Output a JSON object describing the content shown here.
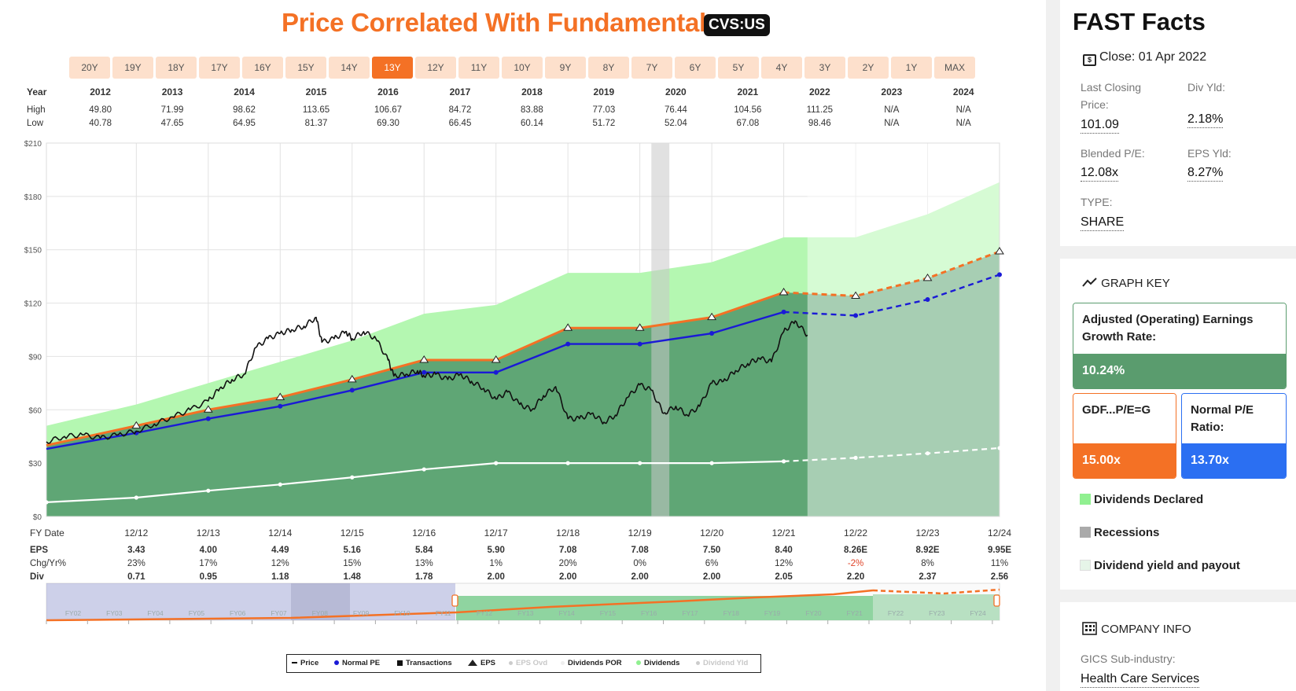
{
  "title": "Price Correlated With Fundamentals",
  "ticker": "CVS:US",
  "tabs": [
    "20Y",
    "19Y",
    "18Y",
    "17Y",
    "16Y",
    "15Y",
    "14Y",
    "13Y",
    "12Y",
    "11Y",
    "10Y",
    "9Y",
    "8Y",
    "7Y",
    "6Y",
    "5Y",
    "4Y",
    "3Y",
    "2Y",
    "1Y",
    "MAX"
  ],
  "active_tab": "13Y",
  "header_table": {
    "year_label": "Year",
    "high_label": "High",
    "low_label": "Low",
    "years": [
      "2012",
      "2013",
      "2014",
      "2015",
      "2016",
      "2017",
      "2018",
      "2019",
      "2020",
      "2021",
      "2022",
      "2023",
      "2024"
    ],
    "high": [
      "49.80",
      "71.99",
      "98.62",
      "113.65",
      "106.67",
      "84.72",
      "83.88",
      "77.03",
      "76.44",
      "104.56",
      "111.25",
      "N/A",
      "N/A"
    ],
    "low": [
      "40.78",
      "47.65",
      "64.95",
      "81.37",
      "69.30",
      "66.45",
      "60.14",
      "51.72",
      "52.04",
      "67.08",
      "98.46",
      "N/A",
      "N/A"
    ]
  },
  "bottom_table": {
    "fy_label": "FY Date",
    "eps_label": "EPS",
    "chg_label": "Chg/Yr%",
    "div_label": "Div",
    "fy_dates": [
      "12/12",
      "12/13",
      "12/14",
      "12/15",
      "12/16",
      "12/17",
      "12/18",
      "12/19",
      "12/20",
      "12/21",
      "12/22",
      "12/23",
      "12/24"
    ],
    "eps": [
      "3.43",
      "4.00",
      "4.49",
      "5.16",
      "5.84",
      "5.90",
      "7.08",
      "7.08",
      "7.50",
      "8.40",
      "8.26E",
      "8.92E",
      "9.95E"
    ],
    "chg": [
      "23%",
      "17%",
      "12%",
      "15%",
      "13%",
      "1%",
      "20%",
      "0%",
      "6%",
      "12%",
      "-2%",
      "8%",
      "11%"
    ],
    "div": [
      "0.71",
      "0.95",
      "1.18",
      "1.48",
      "1.78",
      "2.00",
      "2.00",
      "2.00",
      "2.00",
      "2.05",
      "2.20",
      "2.37",
      "2.56"
    ]
  },
  "chart_data": {
    "type": "area",
    "title": "Price Correlated With Fundamentals",
    "ylim": [
      0,
      210
    ],
    "y_ticks": [
      "$0",
      "$30",
      "$60",
      "$90",
      "$120",
      "$150",
      "$180",
      "$210"
    ],
    "y_tick_values": [
      0,
      30,
      60,
      90,
      120,
      150,
      180,
      210
    ],
    "x_labels": [
      "12/12",
      "12/13",
      "12/14",
      "12/15",
      "12/16",
      "12/17",
      "12/18",
      "12/19",
      "12/20",
      "12/21",
      "12/22",
      "12/23",
      "12/24"
    ],
    "x_start": 2011.67,
    "x_end": 2024.92,
    "actual_end": 2022.25,
    "recession": [
      2020.08,
      2020.33
    ],
    "series": [
      {
        "name": "Dividends",
        "color": "#90f090",
        "x": [
          2011.67,
          2012.92,
          2013.92,
          2014.92,
          2015.92,
          2016.92,
          2017.92,
          2018.92,
          2019.92,
          2020.92,
          2021.92,
          2022.92,
          2023.92,
          2024.92
        ],
        "values": [
          51,
          63,
          75,
          87,
          99,
          114,
          119,
          137,
          137,
          143,
          157,
          157,
          170,
          188
        ]
      },
      {
        "name": "EPS",
        "color": "#f47125",
        "x": [
          2011.67,
          2012.92,
          2013.92,
          2014.92,
          2015.92,
          2016.92,
          2017.92,
          2018.92,
          2019.92,
          2020.92,
          2021.92,
          2022.92,
          2023.92,
          2024.92
        ],
        "values": [
          40,
          51,
          60,
          67,
          77,
          88,
          88,
          106,
          106,
          112,
          126,
          124,
          134,
          149
        ]
      },
      {
        "name": "Normal PE",
        "color": "#1a1ad6",
        "x": [
          2011.67,
          2012.92,
          2013.92,
          2014.92,
          2015.92,
          2016.92,
          2017.92,
          2018.92,
          2019.92,
          2020.92,
          2021.92,
          2022.92,
          2023.92,
          2024.92
        ],
        "values": [
          38,
          47,
          55,
          62,
          71,
          81,
          81,
          97,
          97,
          103,
          115,
          113,
          122,
          136
        ]
      },
      {
        "name": "Dividends POR",
        "color": "#ffffff",
        "x": [
          2011.67,
          2012.92,
          2013.92,
          2014.92,
          2015.92,
          2016.92,
          2017.92,
          2018.92,
          2019.92,
          2020.92,
          2021.92,
          2022.92,
          2023.92,
          2024.92
        ],
        "values": [
          8,
          10.6,
          14.5,
          18,
          22,
          26.5,
          30,
          30,
          30,
          30,
          31,
          33,
          35.5,
          38.5
        ]
      },
      {
        "name": "Price",
        "color": "#111111",
        "x": [
          2011.67,
          2011.92,
          2012.17,
          2012.42,
          2012.67,
          2012.92,
          2013.17,
          2013.42,
          2013.67,
          2013.92,
          2014.08,
          2014.25,
          2014.42,
          2014.58,
          2014.75,
          2014.92,
          2015.08,
          2015.25,
          2015.42,
          2015.5,
          2015.67,
          2015.83,
          2015.92,
          2016.08,
          2016.25,
          2016.42,
          2016.5,
          2016.67,
          2016.83,
          2016.92,
          2017.08,
          2017.25,
          2017.42,
          2017.58,
          2017.75,
          2017.92,
          2018.08,
          2018.25,
          2018.42,
          2018.58,
          2018.75,
          2018.92,
          2019.08,
          2019.25,
          2019.42,
          2019.58,
          2019.75,
          2019.92,
          2020.08,
          2020.25,
          2020.42,
          2020.58,
          2020.75,
          2020.92,
          2021.08,
          2021.25,
          2021.42,
          2021.58,
          2021.75,
          2021.92,
          2022.08,
          2022.25
        ],
        "values": [
          42,
          45,
          46,
          44,
          46,
          48,
          52,
          56,
          60,
          65,
          72,
          77,
          80,
          95,
          100,
          103,
          105,
          107,
          112,
          98,
          100,
          104,
          100,
          104,
          100,
          88,
          79,
          80,
          82,
          79,
          80,
          77,
          80,
          76,
          72,
          66,
          70,
          63,
          60,
          68,
          73,
          55,
          55,
          58,
          53,
          57,
          67,
          74,
          71,
          58,
          62,
          57,
          62,
          75,
          76,
          82,
          86,
          89,
          87,
          104,
          110,
          102
        ]
      }
    ],
    "legend": [
      "Price",
      "Normal PE",
      "Transactions",
      "EPS",
      "EPS Ovd",
      "Dividends POR",
      "Dividends",
      "Dividend Yld"
    ],
    "mini_labels": [
      "FY02",
      "FY03",
      "FY04",
      "FY05",
      "FY06",
      "FY07",
      "FY08",
      "FY09",
      "FY10",
      "FY11",
      "FY12",
      "FY13",
      "FY14",
      "FY15",
      "FY16",
      "FY17",
      "FY18",
      "FY19",
      "FY20",
      "FY21",
      "FY22",
      "FY23",
      "FY24"
    ]
  },
  "fast_facts": {
    "title": "FAST Facts",
    "close_icon_glyph": "$",
    "close_label": "Close: 01 Apr 2022",
    "last_closing_label": "Last Closing Price:",
    "last_closing_value": "101.09",
    "div_yld_label": "Div Yld:",
    "div_yld_value": "2.18%",
    "blended_pe_label": "Blended P/E:",
    "blended_pe_value": "12.08x",
    "eps_yld_label": "EPS Yld:",
    "eps_yld_value": "8.27%",
    "type_label": "TYPE:",
    "type_value": "SHARE"
  },
  "graph_key": {
    "title": "GRAPH KEY",
    "growth_label": "Adjusted (Operating) Earnings Growth Rate:",
    "growth_value": "10.24%",
    "gdf_label": "GDF...P/E=G",
    "gdf_value": "15.00x",
    "normal_pe_label": "Normal P/E Ratio:",
    "normal_pe_value": "13.70x",
    "dividends_declared": "Dividends Declared",
    "recessions": "Recessions",
    "div_yield_payout": "Dividend yield and payout"
  },
  "company_info": {
    "title": "COMPANY INFO",
    "gics_label": "GICS Sub-industry:",
    "gics_value": "Health Care Services"
  },
  "colors": {
    "accent": "#f47125",
    "green_dark": "#5a9c6e",
    "green_light": "#90f090",
    "blue": "#1a1ad6",
    "blue_box": "#2b6ff2"
  }
}
